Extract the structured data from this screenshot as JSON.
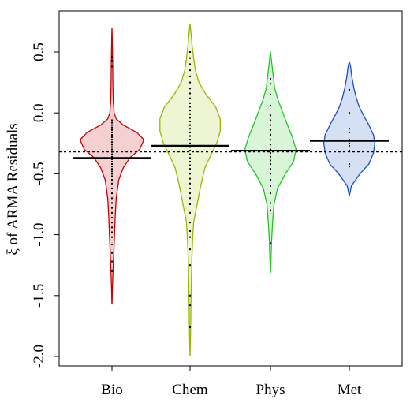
{
  "chart_data": {
    "type": "violin",
    "title": "",
    "ylabel": "ξ of ARMA Residuals",
    "xlabel": "",
    "ylim": [
      -2.05,
      0.82
    ],
    "yticks": [
      0.5,
      0.0,
      -0.5,
      -1.0,
      -1.5,
      -2.0
    ],
    "ytick_labels": [
      "0.5",
      "0.0",
      "-0.5",
      "-1.0",
      "-1.5",
      "-2.0"
    ],
    "reference_line": -0.32,
    "series": [
      {
        "category": "Bio",
        "color": "#c40000",
        "fill": "#f5d0d0",
        "median": -0.37,
        "range": [
          -1.57,
          0.69
        ],
        "profile": [
          [
            -1.57,
            0.003
          ],
          [
            -1.45,
            0.012
          ],
          [
            -1.3,
            0.03
          ],
          [
            -1.15,
            0.05
          ],
          [
            -1.0,
            0.07
          ],
          [
            -0.85,
            0.09
          ],
          [
            -0.7,
            0.12
          ],
          [
            -0.55,
            0.19
          ],
          [
            -0.45,
            0.32
          ],
          [
            -0.37,
            0.5
          ],
          [
            -0.3,
            0.78
          ],
          [
            -0.22,
            0.9
          ],
          [
            -0.16,
            0.7
          ],
          [
            -0.1,
            0.32
          ],
          [
            -0.05,
            0.12
          ],
          [
            0.0,
            0.06
          ],
          [
            0.1,
            0.035
          ],
          [
            0.25,
            0.025
          ],
          [
            0.4,
            0.02
          ],
          [
            0.55,
            0.012
          ],
          [
            0.69,
            0.003
          ]
        ],
        "points": [
          0.46,
          0.43,
          0.38,
          -0.06,
          -0.08,
          -0.1,
          -0.12,
          -0.14,
          -0.16,
          -0.18,
          -0.2,
          -0.22,
          -0.24,
          -0.26,
          -0.28,
          -0.3,
          -0.32,
          -0.34,
          -0.36,
          -0.38,
          -0.4,
          -0.42,
          -0.44,
          -0.46,
          -0.48,
          -0.5,
          -0.52,
          -0.55,
          -0.58,
          -0.62,
          -0.66,
          -0.7,
          -0.74,
          -0.78,
          -0.82,
          -0.86,
          -0.9,
          -0.94,
          -0.98,
          -1.02,
          -1.08,
          -1.15,
          -1.22,
          -1.3
        ]
      },
      {
        "category": "Chem",
        "color": "#9ab800",
        "fill": "#eef5d2",
        "median": -0.27,
        "range": [
          -1.99,
          0.73
        ],
        "profile": [
          [
            -1.99,
            0.003
          ],
          [
            -1.8,
            0.015
          ],
          [
            -1.6,
            0.025
          ],
          [
            -1.4,
            0.035
          ],
          [
            -1.2,
            0.05
          ],
          [
            -1.05,
            0.07
          ],
          [
            -0.9,
            0.1
          ],
          [
            -0.75,
            0.2
          ],
          [
            -0.6,
            0.3
          ],
          [
            -0.45,
            0.42
          ],
          [
            -0.35,
            0.58
          ],
          [
            -0.25,
            0.75
          ],
          [
            -0.15,
            0.85
          ],
          [
            -0.05,
            0.85
          ],
          [
            0.05,
            0.72
          ],
          [
            0.15,
            0.45
          ],
          [
            0.25,
            0.25
          ],
          [
            0.35,
            0.15
          ],
          [
            0.45,
            0.1
          ],
          [
            0.55,
            0.06
          ],
          [
            0.65,
            0.03
          ],
          [
            0.73,
            0.003
          ]
        ],
        "points": [
          0.5,
          0.45,
          0.4,
          0.35,
          0.3,
          0.25,
          0.2,
          0.16,
          0.12,
          0.08,
          0.05,
          0.02,
          -0.01,
          -0.04,
          -0.07,
          -0.1,
          -0.13,
          -0.16,
          -0.19,
          -0.22,
          -0.25,
          -0.28,
          -0.31,
          -0.34,
          -0.37,
          -0.4,
          -0.43,
          -0.46,
          -0.5,
          -0.54,
          -0.58,
          -0.62,
          -0.66,
          -0.7,
          -0.75,
          -0.82,
          -0.9,
          -0.97,
          -1.02,
          -1.12,
          -1.25,
          -1.5,
          -1.58,
          -1.76
        ]
      },
      {
        "category": "Phys",
        "color": "#22c422",
        "fill": "#d8f5d8",
        "median": -0.31,
        "range": [
          -1.31,
          0.5
        ],
        "profile": [
          [
            -1.31,
            0.003
          ],
          [
            -1.2,
            0.015
          ],
          [
            -1.05,
            0.03
          ],
          [
            -0.9,
            0.06
          ],
          [
            -0.75,
            0.1
          ],
          [
            -0.62,
            0.2
          ],
          [
            -0.5,
            0.42
          ],
          [
            -0.4,
            0.65
          ],
          [
            -0.3,
            0.72
          ],
          [
            -0.2,
            0.62
          ],
          [
            -0.1,
            0.48
          ],
          [
            0.0,
            0.35
          ],
          [
            0.1,
            0.22
          ],
          [
            0.2,
            0.12
          ],
          [
            0.3,
            0.08
          ],
          [
            0.4,
            0.04
          ],
          [
            0.5,
            0.003
          ]
        ],
        "points": [
          0.28,
          0.24,
          0.15,
          0.06,
          -0.02,
          -0.06,
          -0.1,
          -0.14,
          -0.18,
          -0.22,
          -0.26,
          -0.3,
          -0.33,
          -0.36,
          -0.39,
          -0.42,
          -0.46,
          -0.5,
          -0.55,
          -0.6,
          -0.66,
          -0.74,
          -0.8,
          -1.07
        ]
      },
      {
        "category": "Met",
        "color": "#1a4fc4",
        "fill": "#d6e0f5",
        "median": -0.23,
        "range": [
          -0.68,
          0.42
        ],
        "profile": [
          [
            -0.68,
            0.003
          ],
          [
            -0.6,
            0.06
          ],
          [
            -0.5,
            0.3
          ],
          [
            -0.42,
            0.55
          ],
          [
            -0.33,
            0.68
          ],
          [
            -0.25,
            0.72
          ],
          [
            -0.18,
            0.68
          ],
          [
            -0.1,
            0.55
          ],
          [
            -0.02,
            0.4
          ],
          [
            0.05,
            0.28
          ],
          [
            0.12,
            0.2
          ],
          [
            0.2,
            0.13
          ],
          [
            0.3,
            0.07
          ],
          [
            0.38,
            0.035
          ],
          [
            0.42,
            0.003
          ]
        ],
        "points": [
          0.19,
          0.0,
          -0.13,
          -0.16,
          -0.22,
          -0.25,
          -0.27,
          -0.31,
          -0.42,
          -0.44
        ]
      }
    ]
  }
}
